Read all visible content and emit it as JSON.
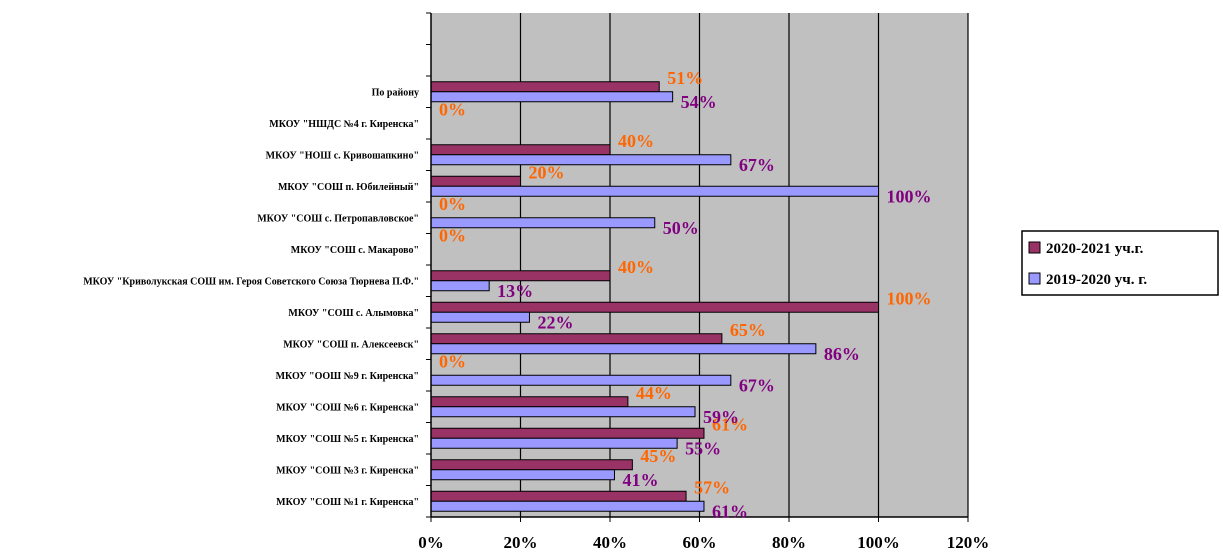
{
  "chart_data": {
    "type": "bar",
    "orientation": "horizontal",
    "title": "",
    "xlabel": "",
    "ylabel": "",
    "xlim": [
      0,
      120
    ],
    "x_ticks": [
      "0%",
      "20%",
      "40%",
      "60%",
      "80%",
      "100%",
      "120%"
    ],
    "grid": true,
    "legend_position": "right",
    "colors": {
      "plot_background": "#c0c0c0",
      "series_2020_2021": "#993366",
      "series_2019_2020": "#9999ff",
      "label_2020_2021": "#ff6600",
      "label_2019_2020": "#800080"
    },
    "categories": [
      "МКОУ \"СОШ №1 г. Киренска\"",
      "МКОУ \"СОШ №3 г. Киренска\"",
      "МКОУ \"СОШ №5 г. Киренска\"",
      "МКОУ \"СОШ №6 г. Киренска\"",
      "МКОУ \"ООШ №9 г. Киренска\"",
      "МКОУ \"СОШ п. Алексеевск\"",
      "МКОУ \"СОШ с. Алымовка\"",
      "МКОУ \"Криволукская СОШ им. Героя Советского Союза Тюрнева П.Ф.\"",
      "МКОУ \"СОШ с. Макарово\"",
      "МКОУ \"СОШ с. Петропавловское\"",
      "МКОУ \"СОШ п. Юбилейный\"",
      "МКОУ \"НОШ с. Кривошапкино\"",
      "МКОУ \"НШДС №4 г. Киренска\"",
      "По району"
    ],
    "series": [
      {
        "name": "2020-2021 уч.г.",
        "values": [
          57,
          45,
          61,
          44,
          0,
          65,
          100,
          40,
          0,
          0,
          20,
          40,
          0,
          51
        ],
        "labels": [
          "57%",
          "45%",
          "61%",
          "44%",
          "0%",
          "65%",
          "100%",
          "40%",
          "0%",
          "0%",
          "20%",
          "40%",
          "0%",
          "51%"
        ]
      },
      {
        "name": "2019-2020 уч. г.",
        "values": [
          61,
          41,
          55,
          59,
          67,
          86,
          22,
          13,
          null,
          50,
          100,
          67,
          null,
          54
        ],
        "labels": [
          "61%",
          "41%",
          "55%",
          "59%",
          "67%",
          "86%",
          "22%",
          "13%",
          null,
          "50%",
          "100%",
          "67%",
          null,
          "54%"
        ]
      }
    ]
  }
}
